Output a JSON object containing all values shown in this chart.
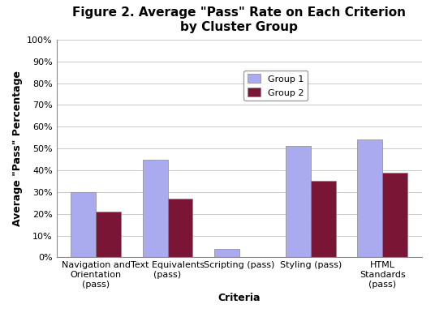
{
  "title": "Figure 2. Average \"Pass\" Rate on Each Criterion\nby Cluster Group",
  "xlabel": "Criteria",
  "ylabel": "Average \"Pass\" Percentage",
  "categories": [
    "Navigation and\nOrientation\n(pass)",
    "Text Equivalents\n(pass)",
    "Scripting (pass)",
    "Styling (pass)",
    "HTML\nStandards\n(pass)"
  ],
  "group1_values": [
    0.3,
    0.45,
    0.04,
    0.51,
    0.54
  ],
  "group2_values": [
    0.21,
    0.27,
    0.0,
    0.35,
    0.39
  ],
  "group1_color": "#aaaaee",
  "group2_color": "#7b1535",
  "bar_width": 0.35,
  "ylim": [
    0,
    1.0
  ],
  "yticks": [
    0.0,
    0.1,
    0.2,
    0.3,
    0.4,
    0.5,
    0.6,
    0.7,
    0.8,
    0.9,
    1.0
  ],
  "ytick_labels": [
    "0%",
    "10%",
    "20%",
    "30%",
    "40%",
    "50%",
    "60%",
    "70%",
    "80%",
    "90%",
    "100%"
  ],
  "legend_labels": [
    "Group 1",
    "Group 2"
  ],
  "background_color": "#ffffff",
  "grid_color": "#cccccc",
  "title_fontsize": 11,
  "axis_label_fontsize": 9,
  "tick_fontsize": 8,
  "legend_fontsize": 8
}
